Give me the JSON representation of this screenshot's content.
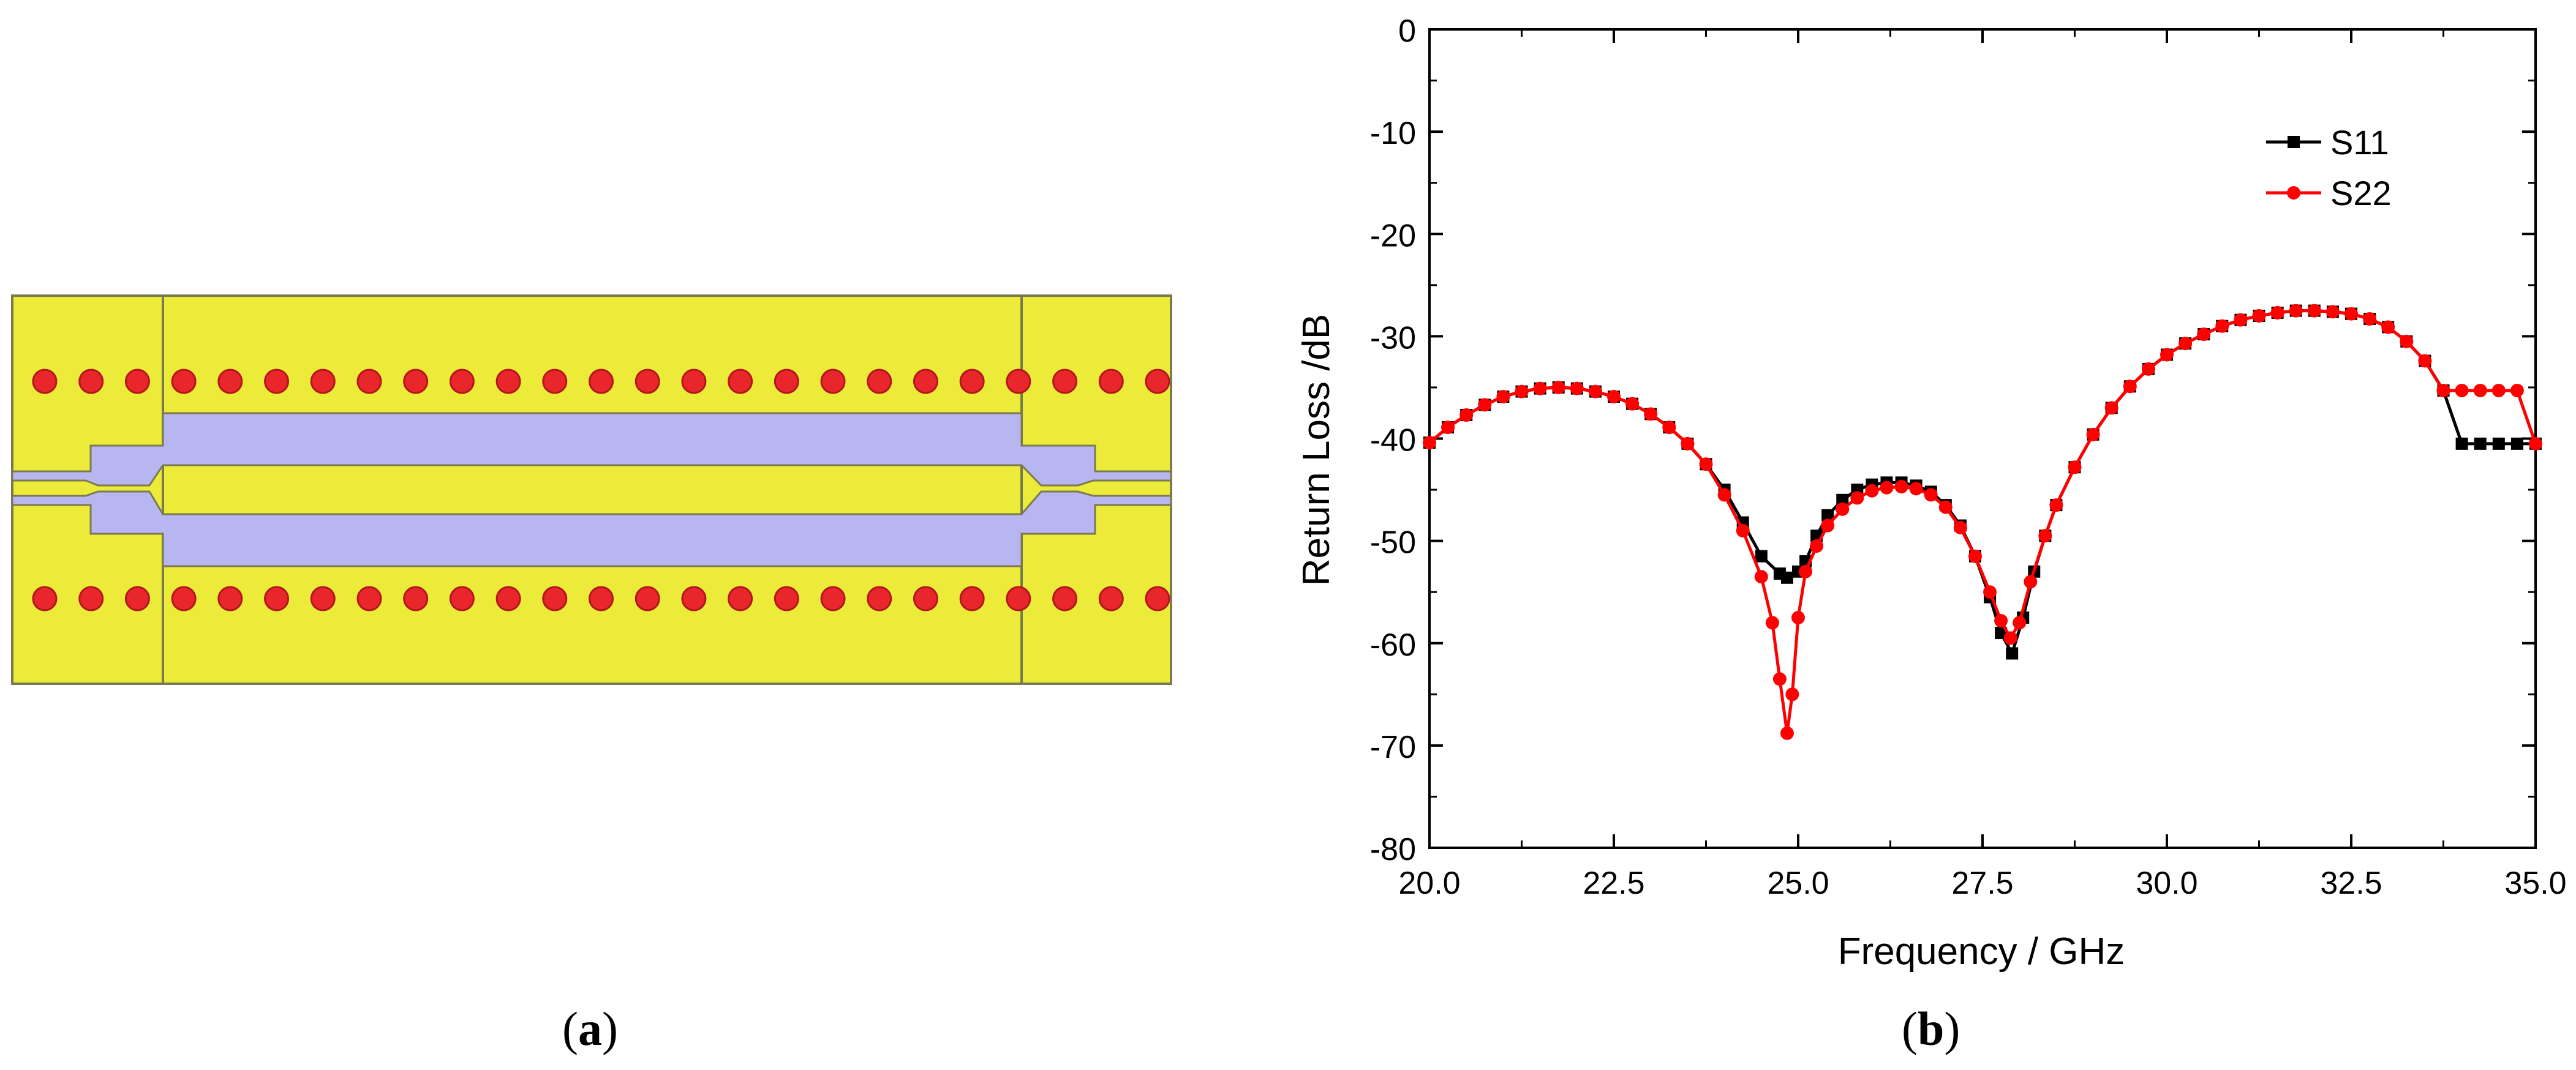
{
  "layout_diagram": {
    "description_label": "",
    "caption_letter": "a",
    "colors": {
      "substrate": "#EDEB3A",
      "conductor": "#B8B6F0",
      "via": "#E8262C",
      "via_outline": "#B01818",
      "outline": "#7A7A50"
    },
    "via_rows": 2,
    "vias_per_row": 25
  },
  "caption_b_letter": "b",
  "chart_data": {
    "type": "line",
    "title": "",
    "xlabel": "Frequency / GHz",
    "ylabel": "Return Loss /dB",
    "xlim": [
      20.0,
      35.0
    ],
    "ylim": [
      -80,
      0
    ],
    "xticks": [
      "20.0",
      "22.5",
      "25.0",
      "27.5",
      "30.0",
      "32.5",
      "35.0"
    ],
    "yticks": [
      "0",
      "-10",
      "-20",
      "-30",
      "-40",
      "-50",
      "-60",
      "-70",
      "-80"
    ],
    "legend_position": "top-right",
    "series": [
      {
        "name": "S11",
        "color": "#000000",
        "marker": "square",
        "x": [
          20.0,
          20.25,
          20.5,
          20.75,
          21.0,
          21.25,
          21.5,
          21.75,
          22.0,
          22.25,
          22.5,
          22.75,
          23.0,
          23.25,
          23.5,
          23.75,
          24.0,
          24.25,
          24.5,
          24.75,
          24.85,
          25.0,
          25.1,
          25.25,
          25.4,
          25.6,
          25.8,
          26.0,
          26.2,
          26.4,
          26.6,
          26.8,
          27.0,
          27.2,
          27.4,
          27.6,
          27.75,
          27.9,
          28.05,
          28.2,
          28.35,
          28.5,
          28.75,
          29.0,
          29.25,
          29.5,
          29.75,
          30.0,
          30.25,
          30.5,
          30.75,
          31.0,
          31.25,
          31.5,
          31.75,
          32.0,
          32.25,
          32.5,
          32.75,
          33.0,
          33.25,
          33.5,
          33.75,
          34.0,
          34.25,
          34.5,
          34.75,
          35.0
        ],
        "y": [
          -40.4,
          -38.9,
          -37.7,
          -36.7,
          -35.9,
          -35.4,
          -35.1,
          -35.0,
          -35.1,
          -35.4,
          -35.9,
          -36.6,
          -37.6,
          -38.9,
          -40.5,
          -42.5,
          -45.0,
          -48.2,
          -51.5,
          -53.2,
          -53.6,
          -53.0,
          -52.0,
          -49.5,
          -47.5,
          -46.0,
          -45.0,
          -44.5,
          -44.3,
          -44.3,
          -44.6,
          -45.2,
          -46.5,
          -48.5,
          -51.5,
          -55.5,
          -59.0,
          -61.0,
          -57.5,
          -53.0,
          -49.5,
          -46.5,
          -42.8,
          -39.6,
          -37.0,
          -34.9,
          -33.2,
          -31.8,
          -30.7,
          -29.8,
          -29.0,
          -28.4,
          -28.0,
          -27.7,
          -27.5,
          -27.5,
          -27.6,
          -27.8,
          -28.3,
          -29.1,
          -30.5,
          -32.4,
          -35.3,
          -40.5,
          -40.5,
          -40.5,
          -40.5,
          -40.5
        ]
      },
      {
        "name": "S22",
        "color": "#FF0000",
        "marker": "circle",
        "x": [
          20.0,
          20.25,
          20.5,
          20.75,
          21.0,
          21.25,
          21.5,
          21.75,
          22.0,
          22.25,
          22.5,
          22.75,
          23.0,
          23.25,
          23.5,
          23.75,
          24.0,
          24.25,
          24.5,
          24.65,
          24.75,
          24.85,
          24.92,
          25.0,
          25.1,
          25.25,
          25.4,
          25.6,
          25.8,
          26.0,
          26.2,
          26.4,
          26.6,
          26.8,
          27.0,
          27.2,
          27.4,
          27.6,
          27.75,
          27.88,
          28.0,
          28.15,
          28.35,
          28.5,
          28.75,
          29.0,
          29.25,
          29.5,
          29.75,
          30.0,
          30.25,
          30.5,
          30.75,
          31.0,
          31.25,
          31.5,
          31.75,
          32.0,
          32.25,
          32.5,
          32.75,
          33.0,
          33.25,
          33.5,
          33.75,
          34.0,
          34.25,
          34.5,
          34.75,
          35.0
        ],
        "y": [
          -40.4,
          -38.9,
          -37.7,
          -36.7,
          -35.9,
          -35.4,
          -35.1,
          -35.0,
          -35.1,
          -35.4,
          -35.9,
          -36.6,
          -37.6,
          -38.9,
          -40.5,
          -42.5,
          -45.5,
          -49.0,
          -53.5,
          -58.0,
          -63.5,
          -68.8,
          -65.0,
          -57.5,
          -53.0,
          -50.5,
          -48.5,
          -46.9,
          -45.8,
          -45.1,
          -44.8,
          -44.7,
          -44.9,
          -45.5,
          -46.7,
          -48.7,
          -51.5,
          -55.0,
          -57.8,
          -59.5,
          -58.0,
          -54.0,
          -49.5,
          -46.5,
          -42.8,
          -39.6,
          -37.0,
          -34.9,
          -33.2,
          -31.8,
          -30.7,
          -29.8,
          -29.0,
          -28.4,
          -28.0,
          -27.7,
          -27.5,
          -27.5,
          -27.6,
          -27.8,
          -28.3,
          -29.1,
          -30.5,
          -32.4,
          -35.3,
          -35.3,
          -35.3,
          -35.3,
          -35.3,
          -40.5
        ]
      }
    ]
  }
}
